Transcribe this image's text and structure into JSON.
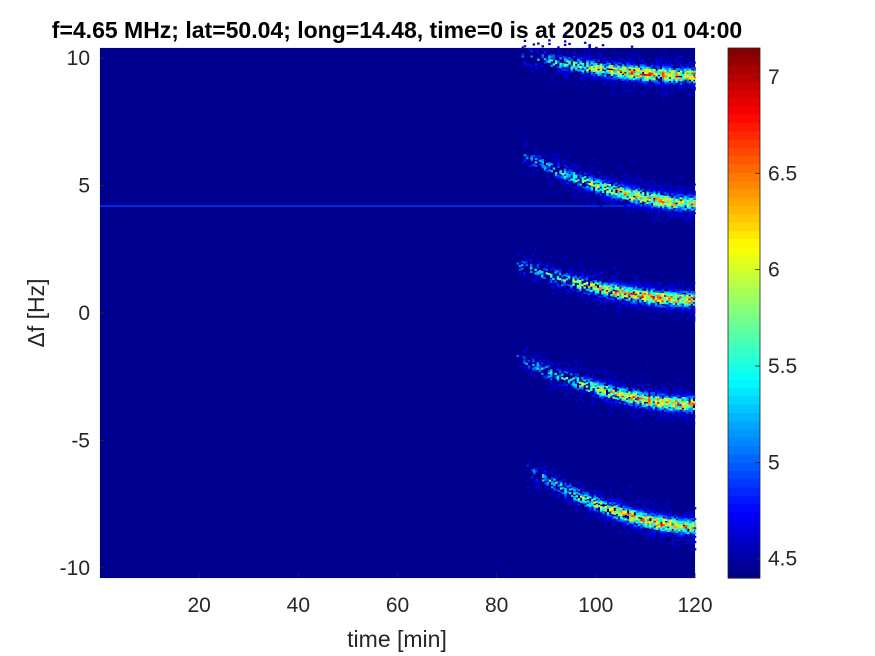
{
  "chart_data": {
    "type": "heatmap",
    "title": "f=4.65 MHz;  lat=50.04; long=14.48, time=0 is at 2025 03 01 04:00",
    "xlabel": "time [min]",
    "ylabel": "Δf [Hz]",
    "xlim": [
      0,
      120
    ],
    "ylim": [
      -10.4,
      10.4
    ],
    "xticks": [
      20,
      40,
      60,
      80,
      100,
      120
    ],
    "yticks": [
      -10,
      -5,
      0,
      5,
      10
    ],
    "ytick_labels": [
      "-10",
      "-5",
      "0",
      "5",
      "10"
    ],
    "colorbar": {
      "colormap": "jet",
      "range": [
        4.4,
        7.15
      ],
      "ticks": [
        4.5,
        5,
        5.5,
        6,
        6.5,
        7
      ],
      "tick_labels": [
        "4.5",
        "5",
        "5.5",
        "6",
        "6.5",
        "7"
      ]
    },
    "background_value": 4.45,
    "features": [
      {
        "kind": "constant-line",
        "y": 4.2,
        "x_range": [
          0,
          120
        ],
        "value": 4.9
      },
      {
        "kind": "echo-band",
        "x_start": 85,
        "x_end": 120,
        "y_start": 10.4,
        "y_end": 9.6,
        "peak_value": 7.0
      },
      {
        "kind": "echo-band",
        "x_start": 85,
        "x_end": 120,
        "y_start": 6.5,
        "y_end": 4.6,
        "peak_value": 6.8
      },
      {
        "kind": "echo-band",
        "x_start": 84,
        "x_end": 120,
        "y_start": 2.2,
        "y_end": 0.8,
        "peak_value": 7.1
      },
      {
        "kind": "echo-band",
        "x_start": 84,
        "x_end": 120,
        "y_start": -1.5,
        "y_end": -3.3,
        "peak_value": 6.9
      },
      {
        "kind": "echo-band",
        "x_start": 86,
        "x_end": 120,
        "y_start": -5.8,
        "y_end": -8.1,
        "peak_value": 7.0
      }
    ]
  }
}
